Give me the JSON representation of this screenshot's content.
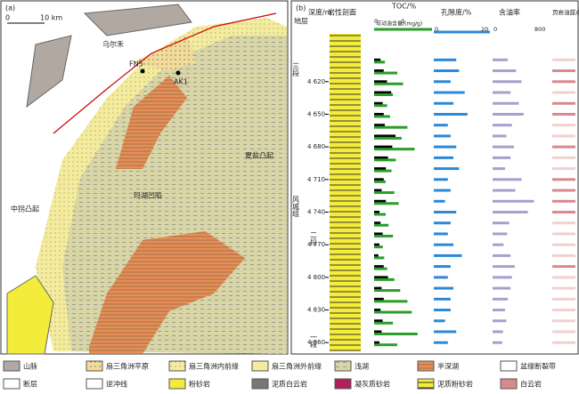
{
  "panel_a": {
    "label": "(a)",
    "scale_start": "0",
    "scale_end": "10 km",
    "wells": [
      "FN5",
      "AK1"
    ],
    "places": [
      "乌尔禾",
      "玛湖凹陷",
      "夏盐凸起",
      "中拐凸起"
    ]
  },
  "panel_b": {
    "label": "(b)",
    "headers": {
      "strata": "地层",
      "depth": "深度/m",
      "lithology": "岩性剖面",
      "toc": "TOC/%",
      "mobile": "可动油含量/(mg/g)",
      "porosity": "孔隙度/%",
      "oil": "含油率",
      "sweet": "页岩油甜点段"
    },
    "formation": "风城组",
    "members": [
      "三段",
      "二段",
      "一段"
    ],
    "depth_lim": [
      4576,
      4868
    ],
    "depth_ticks": [
      {
        "value": 4620,
        "label": "4 620"
      },
      {
        "value": 4650,
        "label": "4 650"
      },
      {
        "value": 4680,
        "label": "4 680"
      },
      {
        "value": 4710,
        "label": "4 710"
      },
      {
        "value": 4740,
        "label": "4 740"
      },
      {
        "value": 4770,
        "label": "4 770"
      },
      {
        "value": 4800,
        "label": "4 800"
      },
      {
        "value": 4830,
        "label": "4 830"
      },
      {
        "value": 4860,
        "label": "4 860"
      }
    ],
    "toc_range": [
      0,
      3
    ],
    "mobile_range": [
      0,
      8
    ],
    "porosity_range": [
      0,
      20
    ],
    "oil_range": [
      0,
      800
    ],
    "samples": [
      4600,
      4610,
      4620,
      4630,
      4640,
      4650,
      4660,
      4670,
      4680,
      4690,
      4700,
      4710,
      4720,
      4730,
      4740,
      4750,
      4760,
      4770,
      4780,
      4790,
      4800,
      4810,
      4820,
      4830,
      4840,
      4850,
      4860
    ],
    "toc": [
      0.6,
      0.9,
      1.2,
      1.6,
      0.8,
      0.9,
      1.0,
      2.0,
      1.7,
      1.3,
      1.1,
      0.9,
      0.7,
      1.1,
      0.5,
      0.6,
      0.8,
      0.5,
      0.4,
      0.9,
      1.3,
      0.7,
      0.9,
      0.6,
      0.8,
      0.7,
      0.5
    ],
    "mobile": [
      1.5,
      3.2,
      4.0,
      2.6,
      1.8,
      2.2,
      4.6,
      3.8,
      5.6,
      3.0,
      2.4,
      1.6,
      2.8,
      3.4,
      1.6,
      2.0,
      2.6,
      1.2,
      1.4,
      1.8,
      2.8,
      3.6,
      4.6,
      5.2,
      2.6,
      6.0,
      3.2
    ],
    "porosity": [
      8,
      9,
      6,
      11,
      7,
      12,
      5,
      6,
      8,
      7,
      9,
      5,
      6,
      4,
      8,
      6,
      5,
      7,
      10,
      6,
      5,
      7,
      6,
      6,
      4,
      8,
      5
    ],
    "oil": [
      220,
      340,
      420,
      260,
      380,
      450,
      280,
      200,
      310,
      260,
      180,
      420,
      330,
      600,
      510,
      240,
      210,
      160,
      260,
      320,
      280,
      260,
      220,
      180,
      200,
      150,
      140
    ]
  },
  "legend": [
    "山脉",
    "扇三角洲平原",
    "扇三角洲内前缘",
    "扇三角洲外前缘",
    "浅湖",
    "半深湖",
    "盆缘断裂带",
    "断层",
    "逆冲线",
    "粉砂岩",
    "泥质白云岩",
    "凝灰质砂岩",
    "泥质粉砂岩",
    "白云岩"
  ]
}
